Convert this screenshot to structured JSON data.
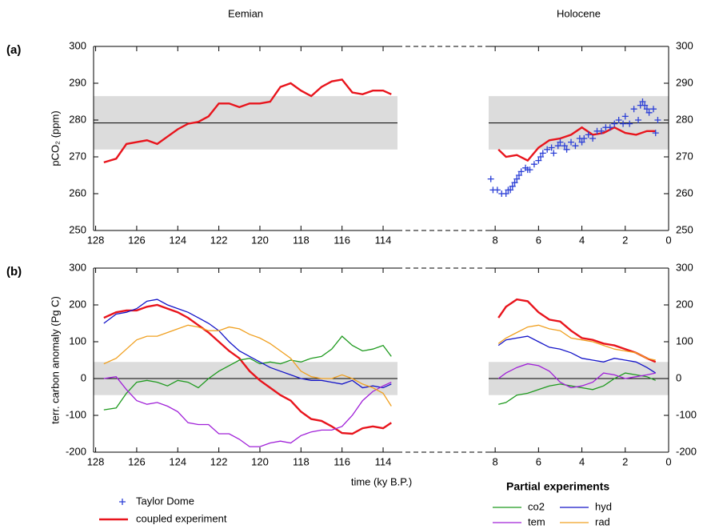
{
  "chart_data": [
    {
      "type": "line",
      "label": "(a)",
      "ylabel": "pCO₂ (ppm)",
      "ylim": [
        250,
        300
      ],
      "yticks": [
        250,
        260,
        270,
        280,
        290,
        300
      ],
      "band": [
        272,
        286.5
      ],
      "reference": 279.2,
      "panels": [
        {
          "title": "Eemian",
          "xlim": [
            128.1,
            113.3
          ],
          "xticks": [
            128,
            126,
            124,
            122,
            120,
            118,
            116,
            114
          ],
          "x": [
            127.6,
            127,
            126.5,
            126,
            125.5,
            125,
            124.5,
            124,
            123.5,
            123,
            122.5,
            122,
            121.5,
            121,
            120.5,
            120,
            119.5,
            119,
            118.5,
            118,
            117.5,
            117,
            116.5,
            116,
            115.5,
            115,
            114.5,
            114,
            113.6
          ],
          "series": [
            {
              "name": "coupled experiment",
              "color": "#e8141c",
              "values": [
                268.5,
                269.5,
                273.5,
                274,
                274.5,
                273.5,
                275.5,
                277.5,
                279,
                279.5,
                281,
                284.5,
                284.5,
                283.5,
                284.5,
                284.5,
                285,
                289,
                290,
                288,
                286.5,
                289,
                290.5,
                291,
                287.5,
                287,
                288,
                288,
                287
              ]
            }
          ]
        },
        {
          "title": "Holocene",
          "xlim": [
            8.3,
            0
          ],
          "xticks": [
            8,
            6,
            4,
            2,
            0
          ],
          "x": [
            7.85,
            7.5,
            7,
            6.5,
            6,
            5.5,
            5,
            4.5,
            4,
            3.5,
            3,
            2.5,
            2,
            1.5,
            1,
            0.6
          ],
          "series": [
            {
              "name": "coupled experiment",
              "color": "#e8141c",
              "values": [
                272,
                270,
                270.5,
                269,
                272.5,
                274.5,
                275,
                276,
                278,
                276,
                276.5,
                278,
                276.5,
                276,
                277,
                277
              ]
            },
            {
              "name": "Taylor Dome",
              "type": "scatter",
              "color": "#2b3fd6",
              "x": [
                8.2,
                8.1,
                7.9,
                7.7,
                7.5,
                7.4,
                7.3,
                7.2,
                7.1,
                7.0,
                6.9,
                6.8,
                6.6,
                6.5,
                6.4,
                6.2,
                6.0,
                5.9,
                5.8,
                5.6,
                5.4,
                5.3,
                5.1,
                5.0,
                4.8,
                4.7,
                4.5,
                4.3,
                4.1,
                4.0,
                3.9,
                3.7,
                3.5,
                3.3,
                3.1,
                2.9,
                2.7,
                2.5,
                2.3,
                2.1,
                2.0,
                1.8,
                1.6,
                1.4,
                1.3,
                1.2,
                1.1,
                1.0,
                0.9,
                0.7,
                0.6,
                0.5
              ],
              "values": [
                264,
                261,
                261,
                260,
                260,
                261,
                261,
                262,
                263,
                264,
                265,
                266,
                267,
                266.5,
                266.5,
                268,
                269,
                270,
                271,
                272,
                272.5,
                271,
                273,
                274,
                273,
                272,
                274,
                273,
                275,
                274,
                275,
                276,
                275,
                277,
                277,
                278,
                278,
                279,
                280,
                279,
                281,
                279,
                283,
                280,
                284,
                285,
                284,
                283,
                282,
                283,
                276.5,
                280
              ]
            }
          ]
        }
      ]
    },
    {
      "type": "line",
      "label": "(b)",
      "ylabel": "terr. carbon anomaly (Pg C)",
      "xlabel": "time (ky B.P.)",
      "ylim": [
        -200,
        300
      ],
      "yticks": [
        -200,
        -100,
        0,
        100,
        200,
        300
      ],
      "band": [
        -45,
        45
      ],
      "reference": 0,
      "legend_title": "Partial experiments",
      "panels": [
        {
          "xlim": [
            128.1,
            113.3
          ],
          "xticks": [
            128,
            126,
            124,
            122,
            120,
            118,
            116,
            114
          ],
          "x": [
            127.6,
            127,
            126.5,
            126,
            125.5,
            125,
            124.5,
            124,
            123.5,
            123,
            122.5,
            122,
            121.5,
            121,
            120.5,
            120,
            119.5,
            119,
            118.5,
            118,
            117.5,
            117,
            116.5,
            116,
            115.5,
            115,
            114.5,
            114,
            113.6
          ],
          "series": [
            {
              "name": "coupled experiment",
              "color": "#e8141c",
              "values": [
                165,
                180,
                185,
                185,
                195,
                200,
                190,
                180,
                165,
                145,
                125,
                100,
                75,
                55,
                20,
                -5,
                -25,
                -45,
                -60,
                -90,
                -110,
                -115,
                -130,
                -148,
                -150,
                -135,
                -130,
                -135,
                -120
              ]
            },
            {
              "name": "co2",
              "color": "#1f9a1f",
              "values": [
                -85,
                -80,
                -40,
                -10,
                -5,
                -10,
                -20,
                -5,
                -10,
                -25,
                0,
                20,
                35,
                50,
                55,
                40,
                45,
                40,
                50,
                45,
                55,
                60,
                80,
                115,
                90,
                75,
                80,
                90,
                60
              ]
            },
            {
              "name": "hyd",
              "color": "#1414c8",
              "values": [
                150,
                175,
                180,
                190,
                210,
                215,
                200,
                190,
                180,
                165,
                150,
                130,
                100,
                75,
                60,
                45,
                30,
                20,
                10,
                0,
                -5,
                -5,
                -10,
                -15,
                -5,
                -25,
                -20,
                -25,
                -15
              ]
            },
            {
              "name": "tem",
              "color": "#a020d8",
              "values": [
                0,
                5,
                -30,
                -60,
                -70,
                -65,
                -75,
                -90,
                -120,
                -125,
                -125,
                -150,
                -150,
                -165,
                -185,
                -185,
                -175,
                -170,
                -175,
                -155,
                -145,
                -140,
                -140,
                -130,
                -100,
                -60,
                -35,
                -20,
                -10
              ]
            },
            {
              "name": "rad",
              "color": "#f0a020",
              "values": [
                40,
                55,
                80,
                105,
                115,
                115,
                125,
                135,
                145,
                140,
                130,
                130,
                140,
                135,
                120,
                110,
                95,
                75,
                55,
                20,
                5,
                0,
                0,
                10,
                0,
                -15,
                -25,
                -40,
                -75
              ]
            }
          ]
        },
        {
          "xlim": [
            8.3,
            0
          ],
          "xticks": [
            8,
            6,
            4,
            2,
            0
          ],
          "x": [
            7.85,
            7.5,
            7,
            6.5,
            6,
            5.5,
            5,
            4.5,
            4,
            3.5,
            3,
            2.5,
            2,
            1.5,
            1,
            0.6
          ],
          "series": [
            {
              "name": "coupled experiment",
              "color": "#e8141c",
              "values": [
                165,
                195,
                215,
                210,
                180,
                160,
                155,
                130,
                110,
                105,
                95,
                90,
                80,
                70,
                55,
                45
              ]
            },
            {
              "name": "co2",
              "color": "#1f9a1f",
              "values": [
                -70,
                -65,
                -45,
                -40,
                -30,
                -20,
                -15,
                -20,
                -25,
                -30,
                -20,
                0,
                15,
                10,
                5,
                -5
              ]
            },
            {
              "name": "hyd",
              "color": "#1414c8",
              "values": [
                90,
                105,
                110,
                115,
                100,
                85,
                80,
                70,
                55,
                50,
                45,
                55,
                50,
                45,
                30,
                15
              ]
            },
            {
              "name": "tem",
              "color": "#a020d8",
              "values": [
                0,
                15,
                30,
                40,
                35,
                20,
                -10,
                -25,
                -20,
                -10,
                15,
                10,
                0,
                5,
                10,
                15
              ]
            },
            {
              "name": "rad",
              "color": "#f0a020",
              "values": [
                95,
                110,
                125,
                140,
                145,
                135,
                130,
                110,
                105,
                100,
                90,
                80,
                75,
                70,
                55,
                50
              ]
            }
          ]
        }
      ]
    }
  ]
}
